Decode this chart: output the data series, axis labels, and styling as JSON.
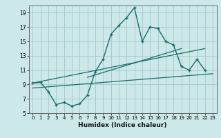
{
  "xlabel": "Humidex (Indice chaleur)",
  "bg_color": "#cce8e8",
  "grid_color": "#aacccc",
  "line_color": "#1a6b6b",
  "xlim": [
    -0.5,
    23.5
  ],
  "ylim": [
    5,
    20
  ],
  "yticks": [
    5,
    7,
    9,
    11,
    13,
    15,
    17,
    19
  ],
  "xticks": [
    0,
    1,
    2,
    3,
    4,
    5,
    6,
    7,
    8,
    9,
    10,
    11,
    12,
    13,
    14,
    15,
    16,
    17,
    18,
    19,
    20,
    21,
    22,
    23
  ],
  "line1_x": [
    0,
    1,
    2,
    3,
    4,
    5,
    6,
    7,
    8,
    9,
    10,
    11,
    12,
    13,
    14,
    15,
    16,
    17,
    18,
    19,
    20,
    21,
    22
  ],
  "line1_y": [
    9.2,
    9.3,
    8.0,
    6.2,
    6.5,
    6.0,
    6.3,
    7.5,
    10.8,
    12.5,
    16.0,
    17.2,
    18.3,
    19.7,
    15.0,
    17.0,
    16.8,
    15.0,
    14.5,
    11.5,
    11.0,
    12.5,
    11.0
  ],
  "line2_x": [
    0,
    22
  ],
  "line2_y": [
    9.2,
    14.0
  ],
  "line3_x": [
    0,
    23
  ],
  "line3_y": [
    8.5,
    10.5
  ],
  "line4_x": [
    7,
    19
  ],
  "line4_y": [
    10.0,
    14.0
  ]
}
